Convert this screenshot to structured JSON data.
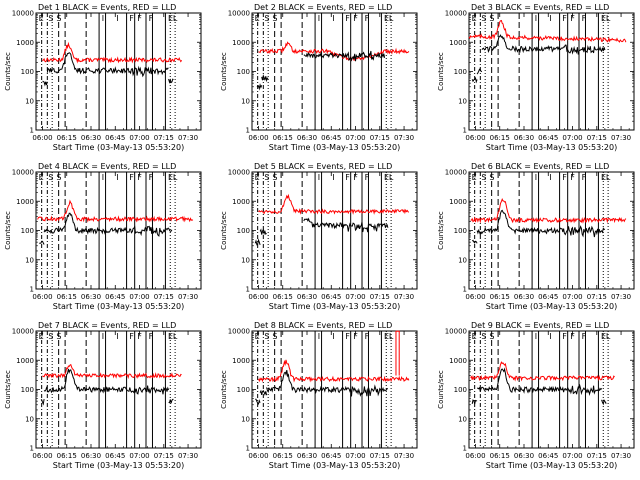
{
  "chart_data": {
    "type": "line",
    "shared": {
      "ylabel": "Counts/sec",
      "xlabel": "Start Time (03-May-13 05:53:20)",
      "yscale": "log",
      "ylim": [
        1,
        10000
      ],
      "yticks": [
        1,
        10,
        100,
        1000,
        10000
      ],
      "ytick_labels": [
        "1",
        "10",
        "100",
        "1000",
        "10000"
      ],
      "xlim_minutes": [
        -4,
        98
      ],
      "xticks_minutes": [
        0,
        15,
        30,
        45,
        60,
        75,
        90
      ],
      "xtick_labels": [
        "06:00",
        "06:15",
        "06:30",
        "06:45",
        "07:00",
        "07:15",
        "07:30"
      ],
      "series_legend": "BLACK = Events, RED = LLD",
      "series_colors": {
        "events": "#000000",
        "lld": "#ff0000"
      },
      "markers": {
        "dotted_minutes": [
          6,
          79,
          82
        ],
        "dashdot_minutes": [
          -0.5,
          3
        ],
        "dashed_minutes": [
          10,
          14,
          27
        ],
        "solid_minutes": [
          35,
          39,
          52,
          57,
          64,
          68,
          76
        ],
        "marker_letters": [
          "E",
          "S",
          "S",
          "I",
          "I",
          "F",
          "F",
          "F",
          "E",
          "L"
        ],
        "letter_minutes": [
          -3,
          3,
          8,
          36,
          45,
          53,
          58,
          65,
          77,
          80
        ]
      }
    },
    "panels": [
      {
        "title": "Det 1",
        "legend": "BLACK = Events, RED = LLD",
        "red": {
          "t_start": 0,
          "t_end": 86,
          "base": 250,
          "peak_min": 16,
          "peak_val": 800,
          "variant": "flat"
        },
        "black": {
          "t_start": 0,
          "t_end": 78,
          "base": 110,
          "peak_min": 16,
          "peak_val": 450,
          "segments": [
            [
              0,
              3,
              40
            ],
            [
              3,
              78,
              110
            ],
            [
              78,
              81,
              50
            ]
          ]
        }
      },
      {
        "title": "Det 2",
        "legend": "BLACK = Events, RED = LLD",
        "red": {
          "t_start": 0,
          "t_end": 93,
          "base": 500,
          "peak_min": 18,
          "peak_val": 900,
          "variant": "dip"
        },
        "black": {
          "t_start": 28,
          "t_end": 78,
          "base": 350,
          "peak_min": 30,
          "peak_val": 400,
          "segments": [
            [
              -1,
              2,
              30
            ],
            [
              2,
              6,
              60
            ],
            [
              28,
              78,
              350
            ]
          ]
        }
      },
      {
        "title": "Det 3",
        "legend": "BLACK = Events, RED = LLD",
        "red": {
          "t_start": -4,
          "t_end": 93,
          "base": 1500,
          "peak_min": 16,
          "peak_val": 5000,
          "variant": "high"
        },
        "black": {
          "t_start": 0,
          "t_end": 80,
          "base": 600,
          "peak_min": 16,
          "peak_val": 1800,
          "segments": [
            [
              -2,
              1,
              50
            ],
            [
              1,
              4,
              100
            ],
            [
              4,
              80,
              600
            ]
          ]
        }
      },
      {
        "title": "Det 4",
        "legend": "BLACK = Events, RED = LLD",
        "red": {
          "t_start": -3,
          "t_end": 93,
          "base": 250,
          "peak_min": 17,
          "peak_val": 900,
          "variant": "flat"
        },
        "black": {
          "t_start": 0,
          "t_end": 80,
          "base": 100,
          "peak_min": 17,
          "peak_val": 400,
          "segments": [
            [
              -2,
              1,
              40
            ],
            [
              1,
              5,
              90
            ],
            [
              5,
              80,
              100
            ]
          ]
        }
      },
      {
        "title": "Det 5",
        "legend": "BLACK = Events, RED = LLD",
        "red": {
          "t_start": 0,
          "t_end": 93,
          "base": 450,
          "peak_min": 18,
          "peak_val": 1500,
          "variant": "flat"
        },
        "black": {
          "t_start": 0,
          "t_end": 80,
          "base": 150,
          "peak_min": 30,
          "peak_val": 250,
          "segments": [
            [
              -2,
              1,
              40
            ],
            [
              1,
              5,
              90
            ],
            [
              28,
              80,
              150
            ]
          ]
        }
      },
      {
        "title": "Det 6",
        "legend": "BLACK = Events, RED = LLD",
        "red": {
          "t_start": -3,
          "t_end": 93,
          "base": 230,
          "peak_min": 17,
          "peak_val": 1200,
          "variant": "flat"
        },
        "black": {
          "t_start": 0,
          "t_end": 80,
          "base": 100,
          "peak_min": 17,
          "peak_val": 500,
          "segments": [
            [
              -2,
              1,
              40
            ],
            [
              1,
              5,
              90
            ],
            [
              5,
              80,
              100
            ]
          ]
        }
      },
      {
        "title": "Det 7",
        "legend": "BLACK = Events, RED = LLD",
        "red": {
          "t_start": 0,
          "t_end": 86,
          "base": 300,
          "peak_min": 17,
          "peak_val": 700,
          "variant": "flat"
        },
        "black": {
          "t_start": 0,
          "t_end": 78,
          "base": 100,
          "peak_min": 17,
          "peak_val": 500,
          "segments": [
            [
              -1,
              1,
              40
            ],
            [
              1,
              78,
              100
            ],
            [
              78,
              81,
              40
            ]
          ]
        }
      },
      {
        "title": "Det 8",
        "legend": "BLACK = Events, RED = LLD",
        "red": {
          "t_start": 0,
          "t_end": 93,
          "base": 230,
          "peak_min": 17,
          "peak_val": 900,
          "variant": "spike"
        },
        "black": {
          "t_start": 0,
          "t_end": 80,
          "base": 100,
          "peak_min": 17,
          "peak_val": 400,
          "segments": [
            [
              -2,
              1,
              40
            ],
            [
              1,
              5,
              80
            ],
            [
              5,
              80,
              100
            ]
          ]
        }
      },
      {
        "title": "Det 9",
        "legend": "BLACK = Events, RED = LLD",
        "red": {
          "t_start": -3,
          "t_end": 86,
          "base": 250,
          "peak_min": 17,
          "peak_val": 900,
          "variant": "flat"
        },
        "black": {
          "t_start": 0,
          "t_end": 80,
          "base": 100,
          "peak_min": 17,
          "peak_val": 500,
          "segments": [
            [
              -2,
              1,
              40
            ],
            [
              1,
              78,
              100
            ],
            [
              78,
              81,
              40
            ]
          ]
        }
      }
    ]
  }
}
